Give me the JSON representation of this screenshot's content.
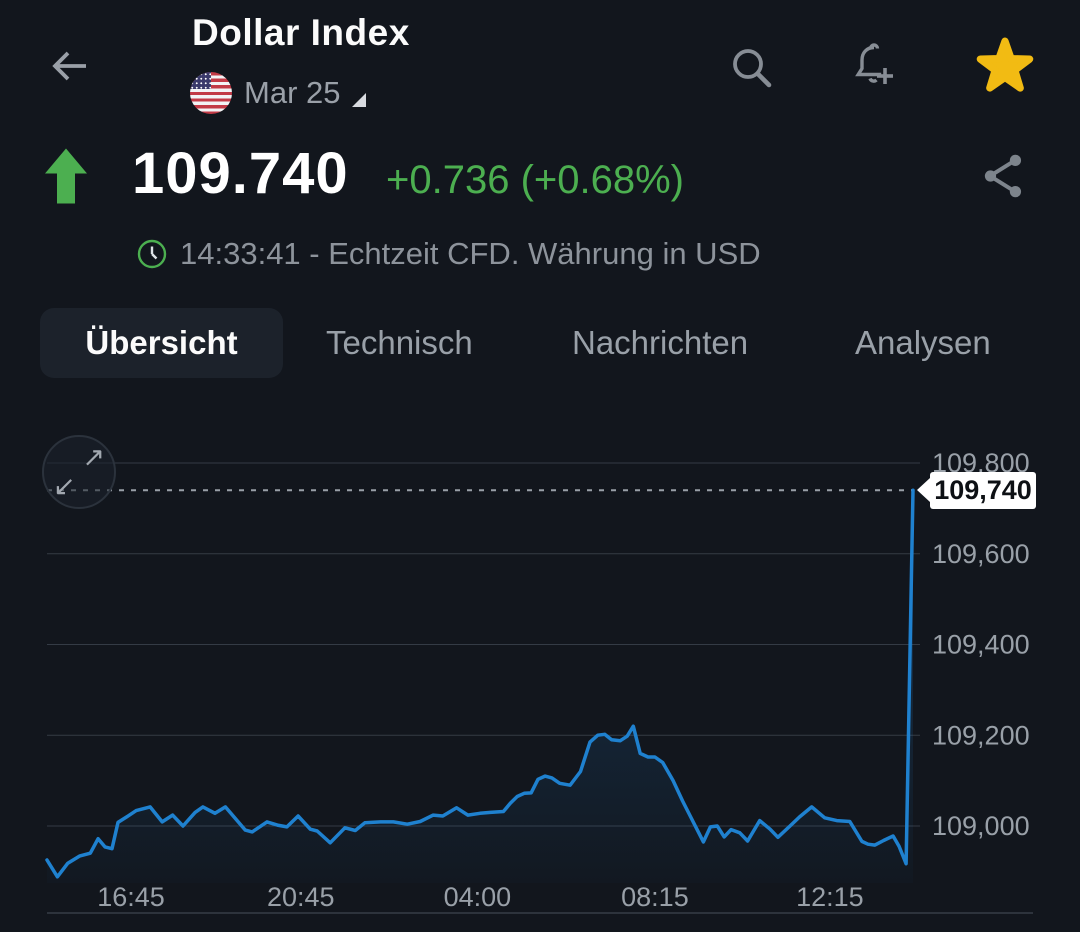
{
  "header": {
    "title": "Dollar Index",
    "subtitle_date": "Mar 25",
    "back_icon": "arrow-left",
    "flag_icon": "us-flag",
    "search_icon": "magnifier",
    "alerts_icon": "bell-plus",
    "favorite_icon": "star-filled"
  },
  "quote": {
    "direction_icon": "arrow-up",
    "price": "109.740",
    "change": "+0.736 (+0.68%)",
    "status": "14:33:41 - Echtzeit CFD. Währung in USD",
    "share_icon": "share-nodes",
    "clock_icon": "clock"
  },
  "tabs": [
    {
      "label": "Übersicht",
      "active": true
    },
    {
      "label": "Technisch",
      "active": false
    },
    {
      "label": "Nachrichten",
      "active": false
    },
    {
      "label": "Analysen",
      "active": false
    }
  ],
  "colors": {
    "background": "#12161d",
    "up_green": "#4caf50",
    "line_blue": "#1f81cf",
    "star_gold": "#f2bb13",
    "muted_text": "#99a0a8",
    "tag_bg": "#ffffff"
  },
  "chart_data": {
    "type": "area",
    "current_price": 109.74,
    "current_price_label": "109,740",
    "expand_arrows": [
      "↗",
      "↙"
    ],
    "y_ticks": [
      "109,800",
      "109,600",
      "109,400",
      "109,200",
      "109,000"
    ],
    "x_ticks": [
      {
        "label": "16:45",
        "f": 0.097
      },
      {
        "label": "20:45",
        "f": 0.293
      },
      {
        "label": "04:00",
        "f": 0.497
      },
      {
        "label": "08:15",
        "f": 0.702
      },
      {
        "label": "12:15",
        "f": 0.904
      }
    ],
    "ylim": [
      108.85,
      109.8
    ],
    "grid": "horizontal-only",
    "points": [
      [
        0.0,
        108.925
      ],
      [
        0.012,
        108.888
      ],
      [
        0.024,
        108.918
      ],
      [
        0.038,
        108.934
      ],
      [
        0.05,
        108.94
      ],
      [
        0.059,
        108.972
      ],
      [
        0.067,
        108.954
      ],
      [
        0.075,
        108.95
      ],
      [
        0.082,
        109.008
      ],
      [
        0.092,
        109.02
      ],
      [
        0.103,
        109.034
      ],
      [
        0.119,
        109.042
      ],
      [
        0.133,
        109.009
      ],
      [
        0.145,
        109.024
      ],
      [
        0.157,
        109.0
      ],
      [
        0.171,
        109.03
      ],
      [
        0.18,
        109.042
      ],
      [
        0.194,
        109.028
      ],
      [
        0.206,
        109.042
      ],
      [
        0.229,
        108.991
      ],
      [
        0.237,
        108.987
      ],
      [
        0.254,
        109.009
      ],
      [
        0.266,
        109.002
      ],
      [
        0.277,
        108.998
      ],
      [
        0.29,
        109.022
      ],
      [
        0.304,
        108.993
      ],
      [
        0.312,
        108.989
      ],
      [
        0.327,
        108.963
      ],
      [
        0.344,
        108.996
      ],
      [
        0.356,
        108.99
      ],
      [
        0.367,
        109.007
      ],
      [
        0.385,
        109.009
      ],
      [
        0.4,
        109.009
      ],
      [
        0.416,
        109.004
      ],
      [
        0.431,
        109.01
      ],
      [
        0.446,
        109.024
      ],
      [
        0.457,
        109.022
      ],
      [
        0.473,
        109.04
      ],
      [
        0.486,
        109.024
      ],
      [
        0.5,
        109.028
      ],
      [
        0.512,
        109.03
      ],
      [
        0.527,
        109.032
      ],
      [
        0.535,
        109.05
      ],
      [
        0.543,
        109.065
      ],
      [
        0.551,
        109.072
      ],
      [
        0.559,
        109.073
      ],
      [
        0.567,
        109.103
      ],
      [
        0.575,
        109.11
      ],
      [
        0.583,
        109.106
      ],
      [
        0.592,
        109.094
      ],
      [
        0.604,
        109.09
      ],
      [
        0.616,
        109.12
      ],
      [
        0.627,
        109.185
      ],
      [
        0.636,
        109.2
      ],
      [
        0.644,
        109.202
      ],
      [
        0.652,
        109.19
      ],
      [
        0.662,
        109.188
      ],
      [
        0.67,
        109.198
      ],
      [
        0.677,
        109.22
      ],
      [
        0.685,
        109.16
      ],
      [
        0.694,
        109.152
      ],
      [
        0.702,
        109.152
      ],
      [
        0.711,
        109.14
      ],
      [
        0.723,
        109.1
      ],
      [
        0.734,
        109.055
      ],
      [
        0.746,
        109.01
      ],
      [
        0.758,
        108.965
      ],
      [
        0.766,
        108.998
      ],
      [
        0.774,
        109.0
      ],
      [
        0.782,
        108.976
      ],
      [
        0.79,
        108.992
      ],
      [
        0.8,
        108.985
      ],
      [
        0.809,
        108.967
      ],
      [
        0.823,
        109.012
      ],
      [
        0.835,
        108.993
      ],
      [
        0.844,
        108.975
      ],
      [
        0.858,
        109.0
      ],
      [
        0.869,
        109.02
      ],
      [
        0.883,
        109.042
      ],
      [
        0.898,
        109.018
      ],
      [
        0.912,
        109.012
      ],
      [
        0.927,
        109.01
      ],
      [
        0.941,
        108.966
      ],
      [
        0.948,
        108.96
      ],
      [
        0.956,
        108.958
      ],
      [
        0.966,
        108.968
      ],
      [
        0.977,
        108.978
      ],
      [
        0.984,
        108.955
      ],
      [
        0.992,
        108.917
      ],
      [
        1.0,
        109.74
      ]
    ]
  }
}
